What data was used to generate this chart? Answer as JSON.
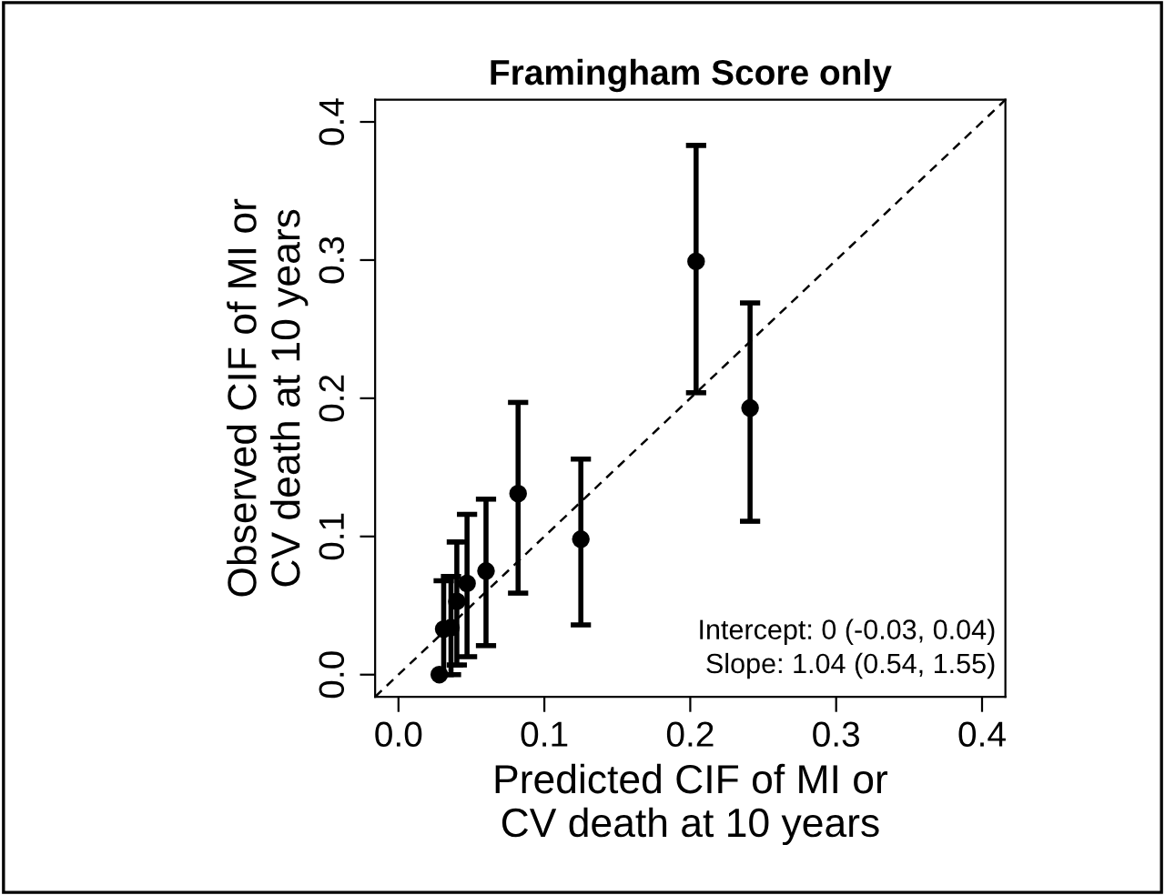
{
  "chart_data": {
    "type": "scatter",
    "title": "Framingham Score only",
    "xlabel": "Predicted CIF of MI or\nCV death at 10 years",
    "ylabel": "Observed CIF of MI or\nCV death at 10 years",
    "xlim": [
      -0.016,
      0.416
    ],
    "ylim": [
      -0.016,
      0.416
    ],
    "xticks": [
      {
        "value": 0,
        "label": "0.0"
      },
      0.1,
      0.2,
      0.3,
      0.4
    ],
    "yticks": [
      {
        "value": 0,
        "label": "0.0"
      },
      0.1,
      0.2,
      0.3,
      0.4
    ],
    "grid": false,
    "legend": false,
    "marker": "circle",
    "series": [
      {
        "color": "#000000",
        "x": [
          0.028,
          0.031,
          0.036,
          0.04,
          0.047,
          0.06,
          0.082,
          0.125,
          0.204,
          0.241
        ],
        "values": [
          0.0,
          0.033,
          0.034,
          0.053,
          0.066,
          0.075,
          0.131,
          0.098,
          0.299,
          0.193
        ],
        "errors": [
          null,
          [
            0.0,
            0.068
          ],
          [
            0.0,
            0.071
          ],
          [
            0.007,
            0.096
          ],
          [
            0.013,
            0.116
          ],
          [
            0.021,
            0.127
          ],
          [
            0.059,
            0.197
          ],
          [
            0.036,
            0.156
          ],
          [
            0.204,
            0.383
          ],
          [
            0.111,
            0.269
          ]
        ]
      },
      {
        "type": "line",
        "color": "#000000",
        "line_style": "dashed",
        "marker": "none",
        "x": [
          -0.016,
          0.416
        ],
        "values": [
          -0.016,
          0.416
        ]
      }
    ],
    "annotations": [
      "Intercept: 0 (-0.03, 0.04)\nSlope: 1.04 (0.54, 1.55)"
    ]
  }
}
